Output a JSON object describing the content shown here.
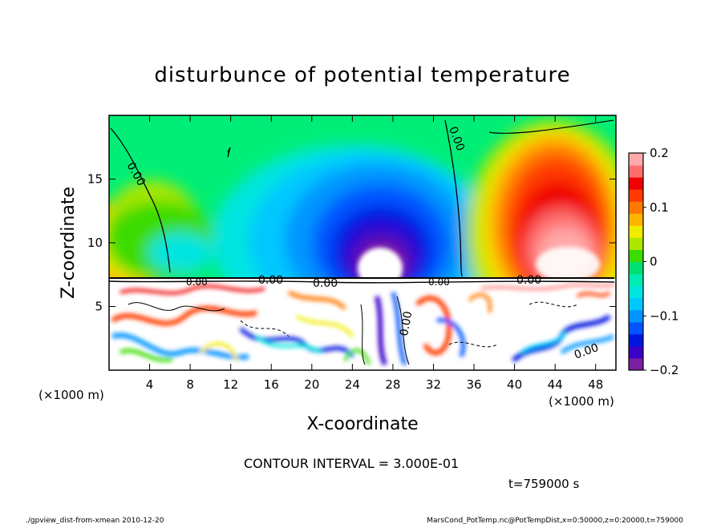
{
  "chart_data": {
    "type": "heatmap",
    "title": "disturbunce of potential temperature",
    "xlabel": "X-coordinate",
    "ylabel": "Z-coordinate",
    "x_unit": "(×1000 m)",
    "z_unit": "(×1000 m)",
    "xlim": [
      0,
      50
    ],
    "ylim": [
      0,
      20
    ],
    "x_ticks": [
      4,
      8,
      12,
      16,
      20,
      24,
      28,
      32,
      36,
      40,
      44,
      48
    ],
    "y_ticks": [
      5,
      10,
      15
    ],
    "colorbar": {
      "range": [
        -0.2,
        0.2
      ],
      "ticks": [
        0.2,
        0.1,
        0,
        -0.1,
        -0.2
      ],
      "tick_labels": [
        "0.2",
        "0.1",
        "0",
        "−0.1",
        "−0.2"
      ],
      "colors": [
        "#7b1fa2",
        "#3b00c9",
        "#0015e0",
        "#0055ff",
        "#0095ff",
        "#00c8ff",
        "#00e5e0",
        "#00ecb0",
        "#00e070",
        "#3cdc00",
        "#aee600",
        "#f0ec00",
        "#ffb400",
        "#ff7800",
        "#ff3a00",
        "#f00000",
        "#ff6e6e",
        "#ffaaaa"
      ]
    },
    "contour_labels": [
      "0.00",
      "0.00",
      "0.00",
      "0.00",
      "0.00",
      "0.00",
      "0.00",
      "0.00",
      "0.00"
    ],
    "contour_interval": "CONTOUR INTERVAL = 3.000E-01",
    "time": "t=759000 s",
    "footer_left": "./gpview_dist-from-xmean  2010-12-20",
    "footer_right": "MarsCond_PotTemp.nc@PotTempDist,x=0:50000,z=0:20000,t=759000"
  }
}
